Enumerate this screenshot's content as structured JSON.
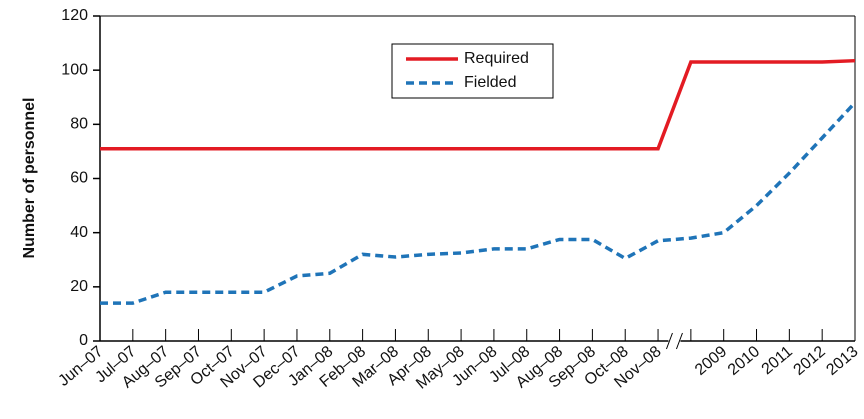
{
  "chart_data": {
    "type": "line",
    "ylabel": "Number of personnel",
    "categories": [
      "Jun–07",
      "Jul–07",
      "Aug–07",
      "Sep–07",
      "Oct–07",
      "Nov–07",
      "Dec–07",
      "Jan–08",
      "Feb–08",
      "Mar–08",
      "Apr–08",
      "May–08",
      "Jun–08",
      "Jul–08",
      "Aug–08",
      "Sep–08",
      "Oct–08",
      "Nov–08",
      null,
      "2009",
      "2010",
      "2011",
      "2012",
      "2013"
    ],
    "series": [
      {
        "name": "Required",
        "color": "#e31b23",
        "dash": false,
        "values": [
          71,
          71,
          71,
          71,
          71,
          71,
          71,
          71,
          71,
          71,
          71,
          71,
          71,
          71,
          71,
          71,
          71,
          71,
          103,
          103,
          103,
          103,
          103,
          103.5
        ]
      },
      {
        "name": "Fielded",
        "color": "#1f74b8",
        "dash": true,
        "values": [
          14,
          14,
          18,
          18,
          18,
          18,
          24,
          25,
          32,
          31,
          32,
          32.5,
          34,
          34,
          37.5,
          37.5,
          30.5,
          37,
          38,
          40,
          50,
          62,
          75,
          88
        ]
      }
    ],
    "ylim": [
      0,
      120
    ],
    "yticks": [
      0,
      20,
      40,
      60,
      80,
      100,
      120
    ],
    "grid": false,
    "legend": "top-center"
  }
}
